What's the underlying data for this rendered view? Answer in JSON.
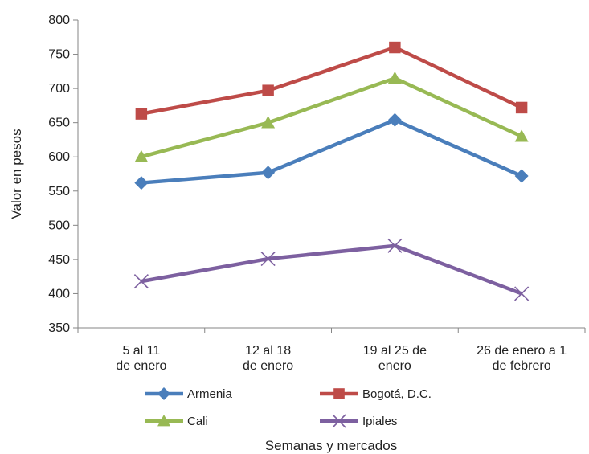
{
  "chart_data": {
    "type": "line",
    "title": "",
    "xlabel": "Semanas y mercados",
    "ylabel": "Valor en pesos",
    "ylim": [
      350,
      800
    ],
    "yticks": [
      350,
      400,
      450,
      500,
      550,
      600,
      650,
      700,
      750,
      800
    ],
    "grid": false,
    "legend_position": "bottom",
    "categories": [
      [
        "5 al 11",
        "de enero"
      ],
      [
        "12 al 18",
        "de enero"
      ],
      [
        "19 al 25 de",
        "enero"
      ],
      [
        "26 de enero a 1",
        "de febrero"
      ]
    ],
    "series": [
      {
        "name": "Armenia",
        "values": [
          562,
          577,
          654,
          572
        ],
        "color": "#4a7ebb",
        "marker": "diamond"
      },
      {
        "name": "Bogotá, D.C.",
        "values": [
          663,
          697,
          760,
          672
        ],
        "color": "#be4b48",
        "marker": "square"
      },
      {
        "name": "Cali",
        "values": [
          600,
          650,
          715,
          630
        ],
        "color": "#98b954",
        "marker": "triangle"
      },
      {
        "name": "Ipiales",
        "values": [
          418,
          451,
          470,
          400
        ],
        "color": "#7d60a0",
        "marker": "x"
      }
    ]
  }
}
